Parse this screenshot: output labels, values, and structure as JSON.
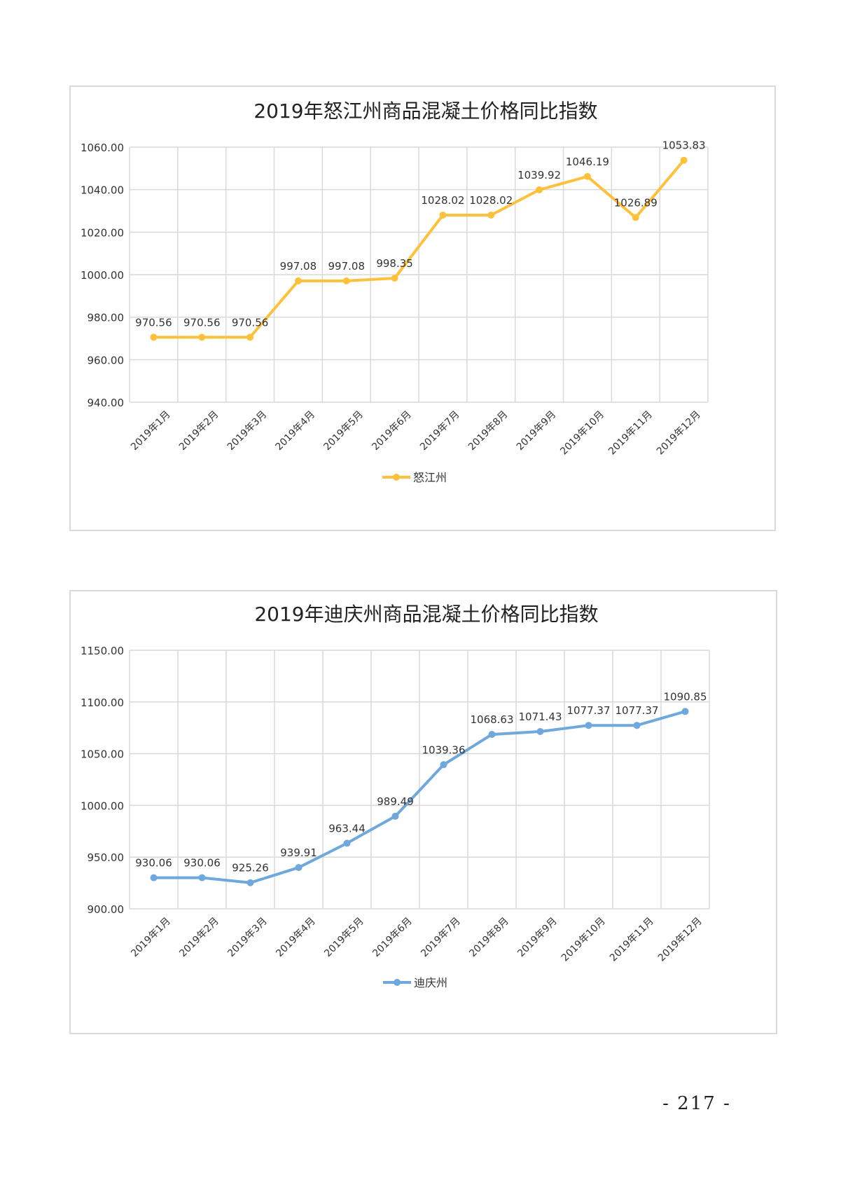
{
  "charts": [
    {
      "id": "chart1",
      "chart_data": {
        "type": "line",
        "title": "2019年怒江州商品混凝土价格同比指数",
        "categories": [
          "2019年1月",
          "2019年2月",
          "2019年3月",
          "2019年4月",
          "2019年5月",
          "2019年6月",
          "2019年7月",
          "2019年8月",
          "2019年9月",
          "2019年10月",
          "2019年11月",
          "2019年12月"
        ],
        "series": [
          {
            "name": "怒江州",
            "color": "#FFC13B",
            "values": [
              970.56,
              970.56,
              970.56,
              997.08,
              997.08,
              998.35,
              1028.02,
              1028.02,
              1039.92,
              1046.19,
              1026.89,
              1053.83
            ]
          }
        ],
        "data_labels": [
          "970.56",
          "970.56",
          "970.56",
          "997.08",
          "997.08",
          "998.35",
          "1028.02",
          "1028.02",
          "1039.92",
          "1046.19",
          "1026.89",
          "1053.83"
        ],
        "ylim": [
          940,
          1060
        ],
        "y_ticks": [
          "940.00",
          "960.00",
          "980.00",
          "1000.00",
          "1020.00",
          "1040.00",
          "1060.00"
        ],
        "xlabel": "",
        "ylabel": "",
        "grid": true,
        "legend": "bottom"
      }
    },
    {
      "id": "chart2",
      "chart_data": {
        "type": "line",
        "title": "2019年迪庆州商品混凝土价格同比指数",
        "categories": [
          "2019年1月",
          "2019年2月",
          "2019年3月",
          "2019年4月",
          "2019年5月",
          "2019年6月",
          "2019年7月",
          "2019年8月",
          "2019年9月",
          "2019年10月",
          "2019年11月",
          "2019年12月"
        ],
        "series": [
          {
            "name": "迪庆州",
            "color": "#6FA8DC",
            "values": [
              930.06,
              930.06,
              925.26,
              939.91,
              963.44,
              989.49,
              1039.36,
              1068.63,
              1071.43,
              1077.37,
              1077.37,
              1090.85
            ]
          }
        ],
        "data_labels": [
          "930.06",
          "930.06",
          "925.26",
          "939.91",
          "963.44",
          "989.49",
          "1039.36",
          "1068.63",
          "1071.43",
          "1077.37",
          "1077.37",
          "1090.85"
        ],
        "ylim": [
          900,
          1150
        ],
        "y_ticks": [
          "900.00",
          "950.00",
          "1000.00",
          "1050.00",
          "1100.00",
          "1150.00"
        ],
        "xlabel": "",
        "ylabel": "",
        "grid": true,
        "legend": "bottom"
      }
    }
  ],
  "page_number": "- 217 -"
}
